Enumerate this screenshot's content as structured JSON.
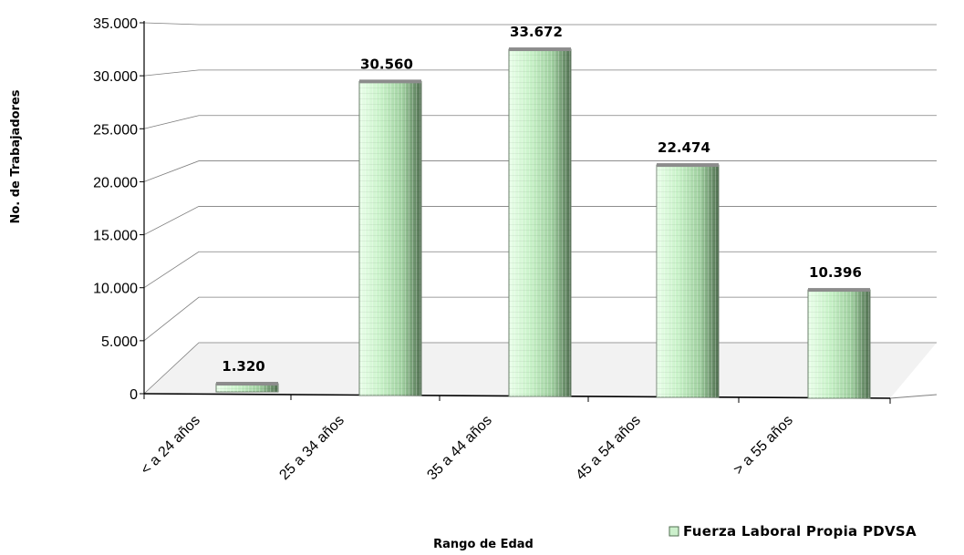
{
  "chart_data": {
    "type": "bar",
    "categories": [
      "< a 24 años",
      "25 a 34 años",
      "35 a 44 años",
      "45 a 54 años",
      "> a 55 años"
    ],
    "series": [
      {
        "name": "Fuerza Laboral Propia PDVSA",
        "values": [
          1320,
          30560,
          33672,
          22474,
          10396
        ]
      }
    ],
    "data_labels": [
      "1.320",
      "30.560",
      "33.672",
      "22.474",
      "10.396"
    ],
    "title": "",
    "xlabel": "Rango de Edad",
    "ylabel": "No. de Trabajadores",
    "ylim": [
      0,
      35000
    ],
    "yticks": [
      0,
      5000,
      10000,
      15000,
      20000,
      25000,
      30000,
      35000
    ],
    "ytick_labels": [
      "0",
      "5.000",
      "10.000",
      "15.000",
      "20.000",
      "25.000",
      "30.000",
      "35.000"
    ],
    "grid": true,
    "legend_position": "bottom-right",
    "colors": {
      "bar_light": "#e6ffe6",
      "bar_mid": "#a8dca8",
      "bar_dark": "#4f6e4f",
      "floor": "#d9d9d9",
      "plot_bg": "#ffffff",
      "grid": "#7f7f7f"
    }
  }
}
